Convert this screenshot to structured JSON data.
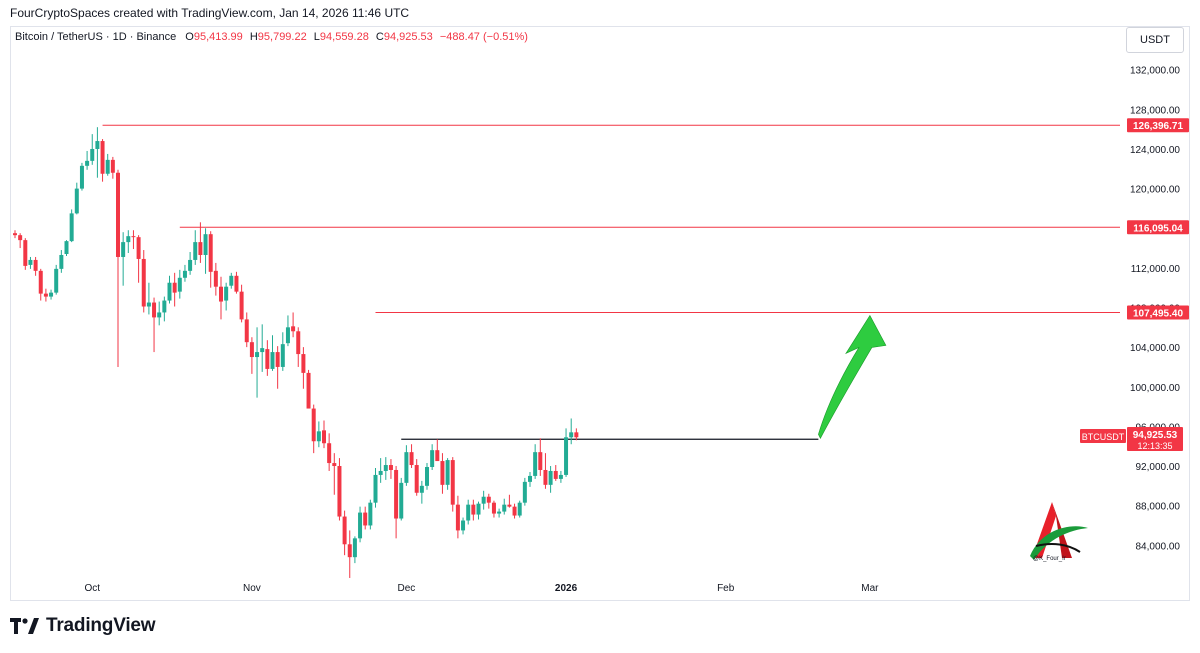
{
  "header": {
    "text": "FourCryptoSpaces created with TradingView.com, Jan 14, 2026 11:46 UTC"
  },
  "ohlc": {
    "symbol": "Bitcoin / TetherUS · 1D · Binance",
    "o_label": "O",
    "o": "95,413.99",
    "h_label": "H",
    "h": "95,799.22",
    "l_label": "L",
    "l": "94,559.28",
    "c_label": "C",
    "c": "94,925.53",
    "change": "−488.47 (−0.51%)"
  },
  "currency": "USDT",
  "footer": {
    "brand": "TradingView"
  },
  "watermark": {
    "handle": "@K_Four_Ir"
  },
  "colors": {
    "up": "#22ab94",
    "down": "#f23645",
    "level": "#f23645",
    "neckline": "#131722",
    "arrow": "#2ecc40"
  },
  "chart_data": {
    "type": "candlestick",
    "y_range": [
      81000,
      135000
    ],
    "y_ticks": [
      "132,000.00",
      "128,000.00",
      "124,000.00",
      "120,000.00",
      "116,000.00",
      "112,000.00",
      "108,000.00",
      "104,000.00",
      "100,000.00",
      "96,000.00",
      "92,000.00",
      "88,000.00",
      "84,000.00"
    ],
    "x_labels": [
      {
        "label": "Oct",
        "date": "2025-10-01",
        "bold": false
      },
      {
        "label": "Nov",
        "date": "2025-11-01",
        "bold": false
      },
      {
        "label": "Dec",
        "date": "2025-12-01",
        "bold": false
      },
      {
        "label": "2026",
        "date": "2026-01-01",
        "bold": true
      },
      {
        "label": "Feb",
        "date": "2026-02-01",
        "bold": false
      },
      {
        "label": "Mar",
        "date": "2026-03-01",
        "bold": false
      }
    ],
    "first_date": "2025-09-16",
    "candles": [
      [
        115500,
        115800,
        115000,
        115300
      ],
      [
        115300,
        115500,
        114000,
        114800
      ],
      [
        114800,
        115000,
        111800,
        112200
      ],
      [
        112300,
        113100,
        111900,
        112800
      ],
      [
        112800,
        113100,
        111200,
        111700
      ],
      [
        111700,
        111900,
        108700,
        109400
      ],
      [
        109400,
        109900,
        108600,
        109100
      ],
      [
        109100,
        109800,
        108800,
        109500
      ],
      [
        109500,
        112300,
        109300,
        111900
      ],
      [
        111900,
        113800,
        111500,
        113300
      ],
      [
        113400,
        114800,
        113200,
        114700
      ],
      [
        114700,
        117900,
        114600,
        117500
      ],
      [
        117500,
        120600,
        117400,
        120000
      ],
      [
        120000,
        122600,
        119800,
        122300
      ],
      [
        122300,
        123800,
        121900,
        122800
      ],
      [
        122800,
        125500,
        122400,
        124000
      ],
      [
        124000,
        126200,
        121100,
        124800
      ],
      [
        124800,
        125000,
        120700,
        121500
      ],
      [
        121500,
        123500,
        121300,
        122900
      ],
      [
        122900,
        123200,
        121000,
        121600
      ],
      [
        121600,
        121900,
        102000,
        113100
      ],
      [
        113100,
        115600,
        110200,
        114600
      ],
      [
        114600,
        115800,
        113500,
        115200
      ],
      [
        115200,
        115800,
        113900,
        115100
      ],
      [
        115100,
        115300,
        110500,
        112900
      ],
      [
        112900,
        113800,
        107500,
        108100
      ],
      [
        108100,
        110500,
        107300,
        108500
      ],
      [
        108500,
        109000,
        103500,
        107000
      ],
      [
        107000,
        108600,
        106200,
        107500
      ],
      [
        107500,
        109100,
        106600,
        108700
      ],
      [
        108700,
        111200,
        108400,
        110500
      ],
      [
        110500,
        111500,
        108100,
        109500
      ],
      [
        109600,
        111800,
        108900,
        111000
      ],
      [
        111000,
        112300,
        110600,
        111700
      ],
      [
        111700,
        113600,
        111300,
        112800
      ],
      [
        112800,
        115800,
        112300,
        114600
      ],
      [
        114600,
        116600,
        112500,
        113300
      ],
      [
        113300,
        116000,
        111400,
        115400
      ],
      [
        115400,
        115700,
        110000,
        111600
      ],
      [
        111700,
        112500,
        109200,
        110100
      ],
      [
        110100,
        111100,
        106800,
        108600
      ],
      [
        108700,
        110500,
        107700,
        110100
      ],
      [
        110200,
        111500,
        109900,
        111200
      ],
      [
        111200,
        111600,
        109400,
        109600
      ],
      [
        109600,
        110300,
        106500,
        106800
      ],
      [
        106800,
        107500,
        104000,
        104500
      ],
      [
        104500,
        105000,
        101300,
        103000
      ],
      [
        103000,
        106000,
        98900,
        103500
      ],
      [
        103500,
        106300,
        101500,
        103900
      ],
      [
        103800,
        104700,
        101100,
        101800
      ],
      [
        101800,
        105200,
        101600,
        103500
      ],
      [
        103500,
        104100,
        99800,
        102000
      ],
      [
        102000,
        105500,
        101600,
        104300
      ],
      [
        104400,
        107200,
        104100,
        106000
      ],
      [
        106100,
        107500,
        105000,
        105600
      ],
      [
        105600,
        106000,
        102000,
        103300
      ],
      [
        103300,
        104000,
        99800,
        101400
      ],
      [
        101400,
        101700,
        98000,
        97800
      ],
      [
        97800,
        98200,
        93300,
        94500
      ],
      [
        94500,
        96500,
        93900,
        95500
      ],
      [
        95600,
        96600,
        93800,
        94300
      ],
      [
        94300,
        95300,
        91500,
        92300
      ],
      [
        92300,
        93300,
        89100,
        92000
      ],
      [
        92000,
        92800,
        86500,
        86900
      ],
      [
        86900,
        87500,
        83000,
        84100
      ],
      [
        84100,
        85500,
        80700,
        82800
      ],
      [
        82800,
        84900,
        82200,
        84700
      ],
      [
        84700,
        87900,
        84300,
        87300
      ],
      [
        87300,
        87900,
        85600,
        86000
      ],
      [
        86000,
        88600,
        85600,
        88300
      ],
      [
        88300,
        91800,
        87800,
        91100
      ],
      [
        91100,
        92800,
        90300,
        91500
      ],
      [
        91500,
        92900,
        90600,
        92100
      ],
      [
        92100,
        92700,
        90700,
        91600
      ],
      [
        91600,
        92000,
        84700,
        86700
      ],
      [
        86700,
        90800,
        86500,
        90300
      ],
      [
        90300,
        94100,
        90000,
        93400
      ],
      [
        93400,
        94200,
        91800,
        92100
      ],
      [
        92100,
        92700,
        89000,
        89300
      ],
      [
        89300,
        90500,
        88200,
        90000
      ],
      [
        90000,
        92300,
        89600,
        91900
      ],
      [
        91900,
        94200,
        91600,
        93600
      ],
      [
        93600,
        94700,
        92800,
        92500
      ],
      [
        92500,
        93300,
        89200,
        90100
      ],
      [
        90100,
        92800,
        89600,
        92600
      ],
      [
        92600,
        92900,
        87400,
        88100
      ],
      [
        88100,
        89000,
        84700,
        85500
      ],
      [
        85500,
        86800,
        85100,
        86500
      ],
      [
        86500,
        88600,
        86100,
        88100
      ],
      [
        88100,
        88600,
        86500,
        87100
      ],
      [
        87100,
        88400,
        86600,
        88200
      ],
      [
        88200,
        89500,
        87600,
        88900
      ],
      [
        88900,
        89200,
        87700,
        88300
      ],
      [
        88300,
        88500,
        86800,
        87200
      ],
      [
        87200,
        87700,
        86800,
        87400
      ],
      [
        87400,
        88700,
        87100,
        88100
      ],
      [
        88100,
        89100,
        87800,
        87900
      ],
      [
        87900,
        88200,
        86700,
        87000
      ],
      [
        87000,
        88500,
        86800,
        88300
      ],
      [
        88300,
        90800,
        88000,
        90400
      ],
      [
        90400,
        91400,
        89900,
        91000
      ],
      [
        91000,
        94200,
        90700,
        93400
      ],
      [
        93400,
        94800,
        91000,
        91600
      ],
      [
        91600,
        93300,
        89700,
        90100
      ],
      [
        90100,
        92000,
        89300,
        91500
      ],
      [
        91500,
        92100,
        90500,
        90700
      ],
      [
        90700,
        91500,
        90300,
        91100
      ],
      [
        91100,
        95800,
        90900,
        94900
      ],
      [
        94900,
        96800,
        94200,
        95400
      ],
      [
        95400,
        95800,
        94600,
        94900
      ]
    ],
    "levels": [
      {
        "value": 126396.71,
        "label": "126,396.71",
        "start_index": 17
      },
      {
        "value": 116095.04,
        "label": "116,095.04",
        "start_index": 32
      },
      {
        "value": 107495.4,
        "label": "107,495.40",
        "start_index": 70
      }
    ],
    "neckline": {
      "value": 94700,
      "start_index": 75,
      "end_index": 156
    },
    "last_price": {
      "label": "BTCUSDT",
      "value": "94,925.53",
      "countdown": "12:13:35",
      "y": 94925.53
    },
    "projection_arrow": {
      "from_index": 156,
      "from_value": 95200,
      "to_index": 166,
      "to_value": 107200
    }
  }
}
